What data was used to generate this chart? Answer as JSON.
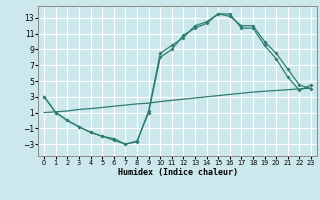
{
  "xlabel": "Humidex (Indice chaleur)",
  "xlim": [
    -0.5,
    23.5
  ],
  "ylim": [
    -4.5,
    14.5
  ],
  "xticks": [
    0,
    1,
    2,
    3,
    4,
    5,
    6,
    7,
    8,
    9,
    10,
    11,
    12,
    13,
    14,
    15,
    16,
    17,
    18,
    19,
    20,
    21,
    22,
    23
  ],
  "yticks": [
    -3,
    -1,
    1,
    3,
    5,
    7,
    9,
    11,
    13
  ],
  "background_color": "#cde8ec",
  "grid_color": "#ffffff",
  "line_color": "#2d7d6e",
  "curve1_x": [
    0,
    1,
    2,
    3,
    4,
    5,
    6,
    7,
    8,
    9,
    10,
    11,
    12,
    13,
    14,
    15,
    16,
    17,
    18,
    19,
    20,
    21,
    22,
    23
  ],
  "curve1_y": [
    3,
    1,
    0,
    -0.8,
    -1.5,
    -2.0,
    -2.3,
    -3.0,
    -2.7,
    1.2,
    8.5,
    9.5,
    10.5,
    12.0,
    12.5,
    13.5,
    13.2,
    12.0,
    12.0,
    10.0,
    8.5,
    6.5,
    4.5,
    4.0
  ],
  "curve2_x": [
    0,
    1,
    2,
    3,
    4,
    5,
    6,
    7,
    8,
    9,
    10,
    11,
    12,
    13,
    14,
    15,
    16,
    17,
    18,
    19,
    20,
    21,
    22,
    23
  ],
  "curve2_y": [
    3,
    1,
    0,
    -0.8,
    -1.5,
    -2.0,
    -2.5,
    -3.0,
    -2.6,
    1.0,
    8.0,
    9.0,
    10.8,
    11.7,
    12.3,
    13.5,
    13.5,
    11.7,
    11.7,
    9.5,
    7.8,
    5.5,
    3.8,
    4.5
  ],
  "curve3_x": [
    0,
    1,
    2,
    3,
    4,
    5,
    6,
    7,
    8,
    9,
    10,
    11,
    12,
    13,
    14,
    15,
    16,
    17,
    18,
    19,
    20,
    21,
    22,
    23
  ],
  "curve3_y": [
    1,
    1.1,
    1.2,
    1.4,
    1.5,
    1.65,
    1.8,
    1.95,
    2.1,
    2.2,
    2.4,
    2.55,
    2.7,
    2.85,
    3.0,
    3.15,
    3.3,
    3.45,
    3.6,
    3.7,
    3.8,
    3.9,
    4.0,
    4.1
  ]
}
